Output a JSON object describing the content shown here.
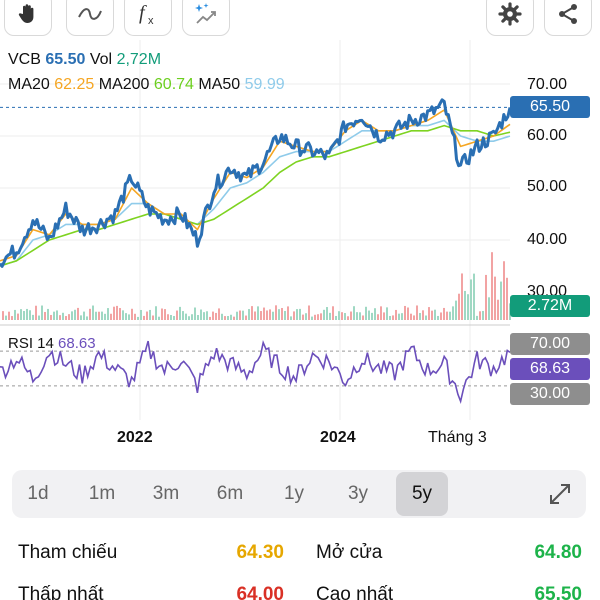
{
  "toolbar": {
    "tools": [
      "hand-tool",
      "line-tool",
      "function-tool",
      "magic-tool"
    ],
    "actions": [
      "settings",
      "share"
    ]
  },
  "legend": {
    "symbol": "VCB",
    "price": "65.50",
    "vol_label": "Vol",
    "vol": "2,72M",
    "ma20_label": "MA20",
    "ma20": "62.25",
    "ma200_label": "MA200",
    "ma200": "60.74",
    "ma50_label": "MA50",
    "ma50": "59.99"
  },
  "colors": {
    "price_line": "#2a6fb3",
    "ma20": "#f5a623",
    "ma200": "#7ed321",
    "ma50": "#8fcbea",
    "rsi": "#6b4fbb",
    "volume_tag": "#129c7a",
    "price_tag": "#2a6fb3",
    "reference": "#e6a700",
    "open": "#1db34a",
    "low": "#d93025",
    "high": "#1db34a"
  },
  "price_axis": [
    "70.00",
    "60.00",
    "50.00",
    "40.00",
    "30.00"
  ],
  "price_tag": "65.50",
  "volume_tag": "2.72M",
  "rsi": {
    "label": "RSI 14",
    "value": "68.63",
    "upper": "70.00",
    "lower": "30.00"
  },
  "x_axis": [
    "2022",
    "2024",
    "Tháng 3"
  ],
  "periods": [
    "1d",
    "1m",
    "3m",
    "6m",
    "1y",
    "3y",
    "5y"
  ],
  "active_period": "5y",
  "stats": {
    "reference_label": "Tham chiếu",
    "reference": "64.30",
    "open_label": "Mở cửa",
    "open": "64.80",
    "low_label": "Thấp nhất",
    "low": "64.00",
    "high_label": "Cao nhất",
    "high": "65.50"
  },
  "chart_data": {
    "type": "line",
    "title": "",
    "x_ticks": [
      "2022",
      "2024",
      "Tháng 3"
    ],
    "ylim": [
      30,
      70
    ],
    "series": [
      {
        "name": "VCB",
        "values": [
          36,
          38,
          44,
          40,
          46,
          42,
          43,
          45,
          52,
          46,
          44,
          45,
          40,
          50,
          54,
          52,
          55,
          60,
          58,
          57,
          56,
          62,
          64,
          60,
          61,
          63,
          64,
          66,
          54,
          58,
          60,
          65.5
        ]
      },
      {
        "name": "MA20",
        "values": [
          36,
          37,
          42,
          41,
          45,
          43,
          43,
          44,
          50,
          47,
          45,
          45,
          42,
          48,
          53,
          52,
          54,
          59,
          58,
          57,
          57,
          61,
          63,
          61,
          61,
          62,
          63,
          65,
          58,
          59,
          60,
          62.25
        ]
      },
      {
        "name": "MA200",
        "values": [
          35,
          36,
          38,
          40,
          41,
          42,
          42,
          43,
          44,
          45,
          45,
          44,
          43,
          44,
          46,
          48,
          50,
          53,
          55,
          56,
          56,
          57,
          58,
          59,
          60,
          61,
          61,
          62,
          61,
          61,
          60,
          60.74
        ]
      },
      {
        "name": "MA50",
        "values": [
          35,
          36,
          40,
          41,
          43,
          43,
          43,
          44,
          47,
          47,
          45,
          44,
          43,
          46,
          50,
          51,
          53,
          56,
          57,
          57,
          57,
          59,
          61,
          61,
          61,
          62,
          62,
          63,
          60,
          59,
          59,
          59.99
        ]
      }
    ],
    "rsi": {
      "name": "RSI 14",
      "ylim": [
        0,
        100
      ],
      "values": [
        45,
        62,
        38,
        70,
        55,
        42,
        66,
        50,
        35,
        72,
        48,
        60,
        30,
        68,
        55,
        44,
        70,
        52,
        40,
        65,
        58,
        36,
        62,
        50,
        45,
        70,
        48,
        55,
        20,
        60,
        50,
        68.63
      ]
    }
  }
}
